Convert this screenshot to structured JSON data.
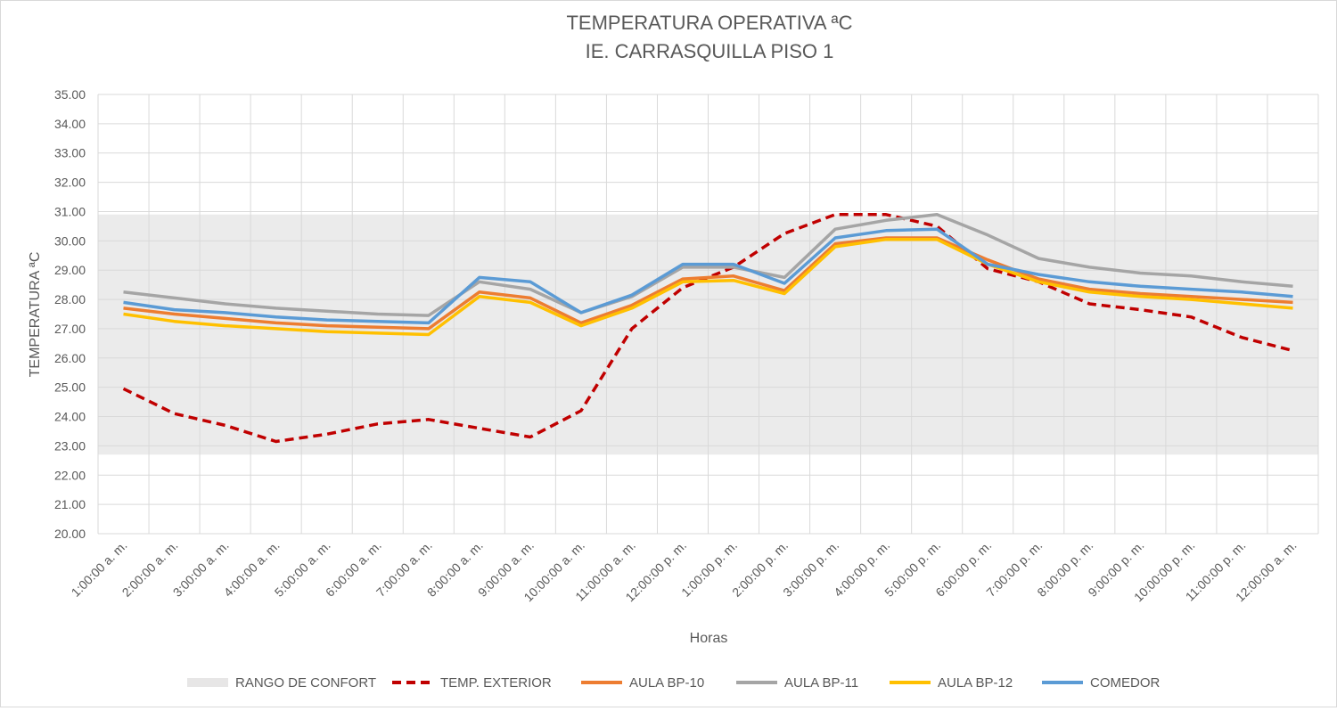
{
  "chart_data": {
    "type": "line",
    "title": "TEMPERATURA OPERATIVA ªC",
    "subtitle": "IE. CARRASQUILLA PISO 1",
    "xlabel": "Horas",
    "ylabel": "TEMPERATURA ªC",
    "ylim": [
      20,
      35
    ],
    "yticks": [
      "20.00",
      "21.00",
      "22.00",
      "23.00",
      "24.00",
      "25.00",
      "26.00",
      "27.00",
      "28.00",
      "29.00",
      "30.00",
      "31.00",
      "32.00",
      "33.00",
      "34.00",
      "35.00"
    ],
    "grid": true,
    "legend_position": "bottom",
    "categories": [
      "1:00:00 a. m.",
      "2:00:00 a. m.",
      "3:00:00 a. m.",
      "4:00:00 a. m.",
      "5:00:00 a. m.",
      "6:00:00 a. m.",
      "7:00:00 a. m.",
      "8:00:00 a. m.",
      "9:00:00 a. m.",
      "10:00:00 a. m.",
      "11:00:00 a. m.",
      "12:00:00 p. m.",
      "1:00:00 p. m.",
      "2:00:00 p. m.",
      "3:00:00 p. m.",
      "4:00:00 p. m.",
      "5:00:00 p. m.",
      "6:00:00 p. m.",
      "7:00:00 p. m.",
      "8:00:00 p. m.",
      "9:00:00 p. m.",
      "10:00:00 p. m.",
      "11:00:00 p. m.",
      "12:00:00 a. m."
    ],
    "band": {
      "name": "RANGO DE CONFORT",
      "min": 22.7,
      "max": 30.9,
      "color": "#ebebeb"
    },
    "series": [
      {
        "name": "TEMP. EXTERIOR",
        "color": "#c00000",
        "dashed": true,
        "values": [
          24.95,
          24.1,
          23.7,
          23.15,
          23.4,
          23.75,
          23.9,
          23.6,
          23.3,
          24.2,
          27.0,
          28.4,
          29.1,
          30.25,
          30.9,
          30.9,
          30.5,
          29.05,
          28.6,
          27.85,
          27.65,
          27.4,
          26.7,
          26.25
        ]
      },
      {
        "name": "AULA BP-10",
        "color": "#ed7d31",
        "dashed": false,
        "values": [
          27.7,
          27.5,
          27.35,
          27.2,
          27.1,
          27.05,
          27.0,
          28.25,
          28.05,
          27.2,
          27.8,
          28.7,
          28.8,
          28.3,
          29.9,
          30.1,
          30.1,
          29.35,
          28.7,
          28.35,
          28.2,
          28.1,
          28.0,
          27.9
        ]
      },
      {
        "name": "AULA BP-11",
        "color": "#a5a5a5",
        "dashed": false,
        "values": [
          28.25,
          28.05,
          27.85,
          27.7,
          27.6,
          27.5,
          27.45,
          28.6,
          28.35,
          27.55,
          28.1,
          29.1,
          29.1,
          28.75,
          30.4,
          30.7,
          30.9,
          30.2,
          29.4,
          29.1,
          28.9,
          28.8,
          28.6,
          28.45
        ]
      },
      {
        "name": "AULA BP-12",
        "color": "#ffc000",
        "dashed": false,
        "values": [
          27.5,
          27.25,
          27.1,
          27.0,
          26.9,
          26.85,
          26.8,
          28.1,
          27.9,
          27.1,
          27.7,
          28.6,
          28.65,
          28.2,
          29.8,
          30.05,
          30.05,
          29.2,
          28.6,
          28.25,
          28.1,
          28.0,
          27.85,
          27.7
        ]
      },
      {
        "name": "COMEDOR",
        "color": "#5b9bd5",
        "dashed": false,
        "values": [
          27.9,
          27.65,
          27.55,
          27.4,
          27.3,
          27.25,
          27.2,
          28.75,
          28.6,
          27.55,
          28.15,
          29.2,
          29.2,
          28.55,
          30.1,
          30.35,
          30.4,
          29.2,
          28.85,
          28.6,
          28.45,
          28.35,
          28.25,
          28.1
        ]
      }
    ]
  }
}
